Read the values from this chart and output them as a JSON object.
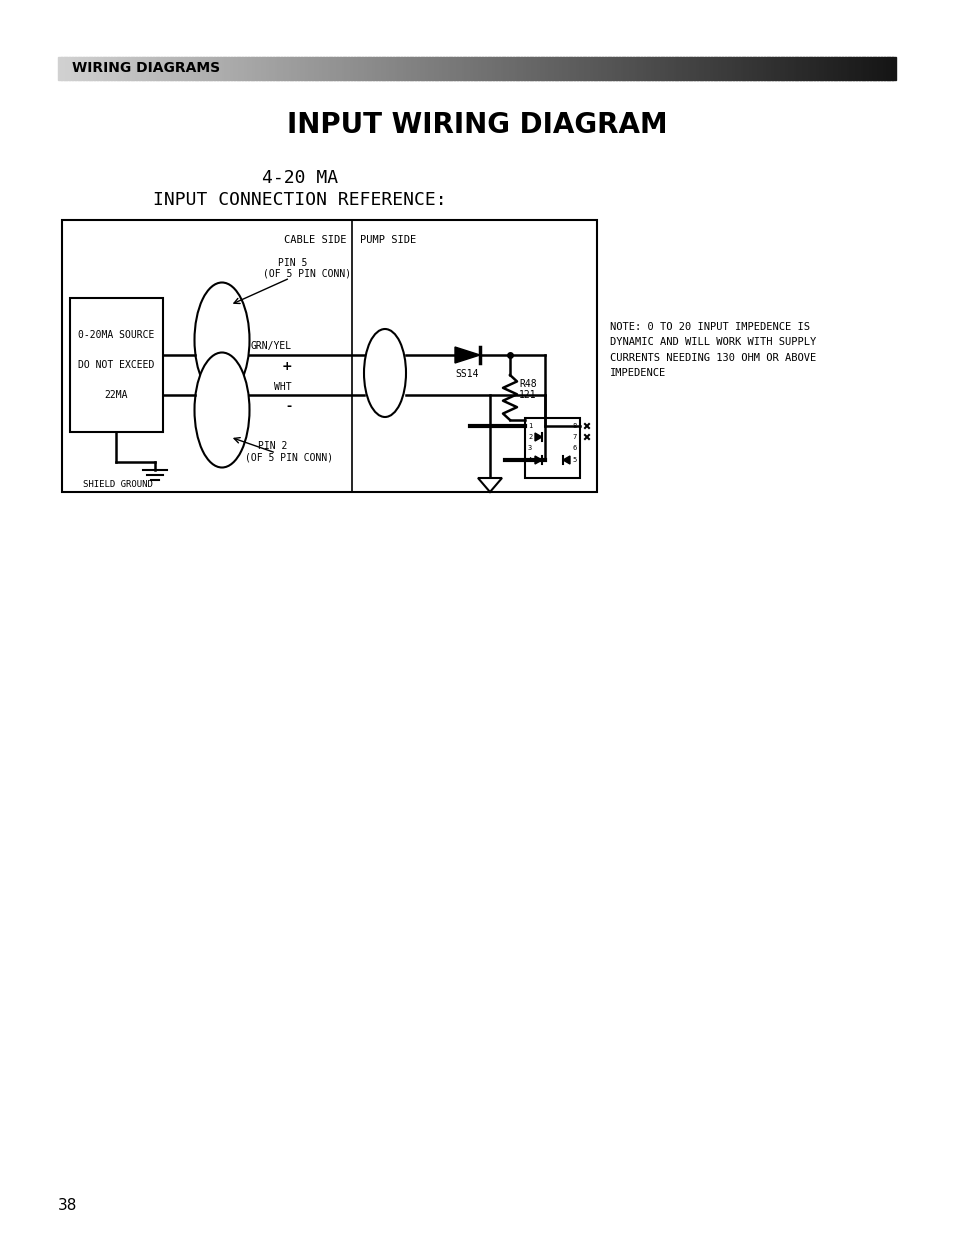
{
  "page_bg": "#ffffff",
  "header_text": "WIRING DIAGRAMS",
  "title": "INPUT WIRING DIAGRAM",
  "subtitle_line1": "4-20 MA",
  "subtitle_line2": "INPUT CONNECTION REFERENCE:",
  "note_text": "NOTE: 0 TO 20 INPUT IMPEDENCE IS\nDYNAMIC AND WILL WORK WITH SUPPLY\nCURRENTS NEEDING 130 OHM OR ABOVE\nIMPEDENCE",
  "page_number": "38",
  "source_box_text": "0-20MA SOURCE\n\nDO NOT EXCEED\n\n22MA",
  "cable_side_label": "CABLE SIDE",
  "pump_side_label": "PUMP SIDE",
  "grn_yel_label": "GRN/YEL",
  "wht_label": "WHT",
  "plus_label": "+",
  "minus_label": "-",
  "ss14_label": "SS14",
  "r48_label": "R48\n121",
  "shield_ground_label": "SHIELD GROUND",
  "pin5_text1": "PIN 5",
  "pin5_text2": "(OF 5 PIN CONN)",
  "pin2_text1": "PIN 2",
  "pin2_text2": "(OF 5 PIN CONN)"
}
